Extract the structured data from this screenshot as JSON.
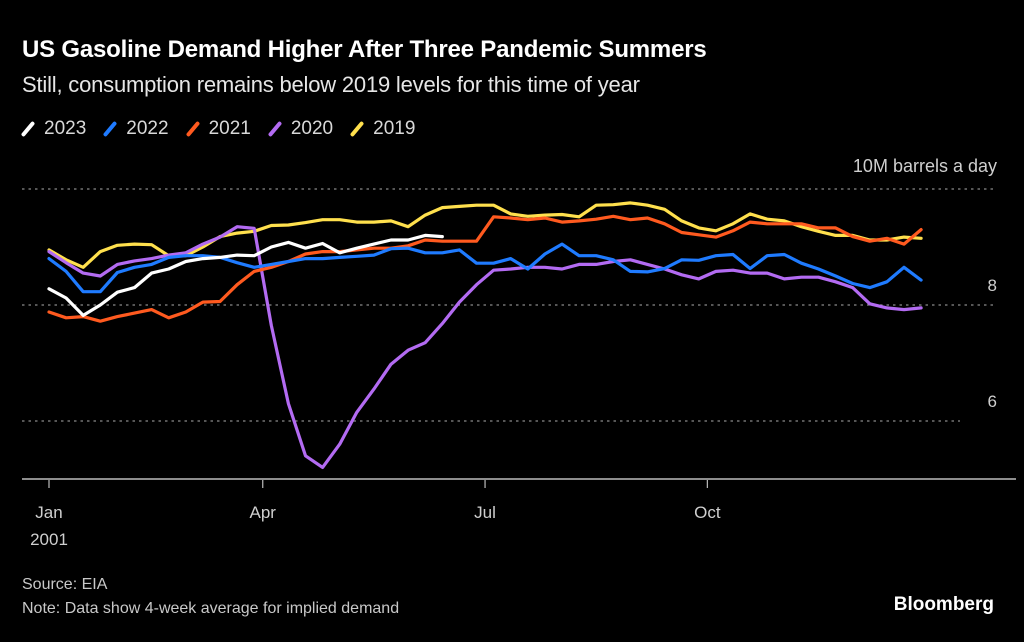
{
  "chart_data": {
    "type": "line",
    "title": "US Gasoline Demand Higher After Three Pandemic Summers",
    "subtitle": "Still, consumption remains below 2019 levels for this time of year",
    "ylabel": "10M barrels a day",
    "unit_label": "10M barrels a day",
    "ylim": [
      4.9,
      10
    ],
    "yticks": [
      {
        "value": 10,
        "label": ""
      },
      {
        "value": 8,
        "label": "8"
      },
      {
        "value": 6,
        "label": "6"
      }
    ],
    "x_weeks": 52,
    "xticks": [
      {
        "week": 0,
        "label": "Jan",
        "sublabel": "2001"
      },
      {
        "week": 12.5,
        "label": "Apr",
        "sublabel": ""
      },
      {
        "week": 25.5,
        "label": "Jul",
        "sublabel": ""
      },
      {
        "week": 38.5,
        "label": "Oct",
        "sublabel": ""
      }
    ],
    "grid": true,
    "legend_position": "top-left",
    "series": [
      {
        "name": "2023",
        "color": "#ffffff",
        "values": [
          8.28,
          8.12,
          7.82,
          8.0,
          8.22,
          8.3,
          8.55,
          8.62,
          8.75,
          8.8,
          8.82,
          8.86,
          8.85,
          9.0,
          9.08,
          8.98,
          9.06,
          8.9,
          8.98,
          9.05,
          9.12,
          9.12,
          9.2,
          9.18
        ]
      },
      {
        "name": "2022",
        "color": "#1f7bff",
        "values": [
          8.8,
          8.58,
          8.23,
          8.23,
          8.56,
          8.65,
          8.7,
          8.82,
          8.85,
          8.85,
          8.82,
          8.73,
          8.65,
          8.7,
          8.75,
          8.8,
          8.8,
          8.82,
          8.84,
          8.86,
          8.97,
          8.98,
          8.9,
          8.9,
          8.95,
          8.72,
          8.72,
          8.8,
          8.62,
          8.88,
          9.05,
          8.85,
          8.85,
          8.78,
          8.58,
          8.57,
          8.63,
          8.78,
          8.77,
          8.85,
          8.87,
          8.63,
          8.85,
          8.87,
          8.72,
          8.62,
          8.5,
          8.37,
          8.3,
          8.4,
          8.65,
          8.43
        ]
      },
      {
        "name": "2021",
        "color": "#ff5a1f",
        "values": [
          7.88,
          7.78,
          7.8,
          7.72,
          7.8,
          7.86,
          7.92,
          7.78,
          7.88,
          8.05,
          8.06,
          8.35,
          8.58,
          8.65,
          8.75,
          8.88,
          8.92,
          8.92,
          8.95,
          8.98,
          8.98,
          9.02,
          9.12,
          9.1,
          9.1,
          9.1,
          9.52,
          9.5,
          9.47,
          9.5,
          9.43,
          9.45,
          9.48,
          9.53,
          9.47,
          9.5,
          9.4,
          9.25,
          9.21,
          9.17,
          9.28,
          9.43,
          9.4,
          9.4,
          9.4,
          9.33,
          9.33,
          9.18,
          9.1,
          9.15,
          9.05,
          9.3
        ]
      },
      {
        "name": "2020",
        "color": "#b36bf2",
        "values": [
          8.92,
          8.73,
          8.55,
          8.5,
          8.7,
          8.76,
          8.8,
          8.86,
          8.9,
          9.05,
          9.17,
          9.35,
          9.32,
          7.65,
          6.3,
          5.4,
          5.2,
          5.6,
          6.15,
          6.55,
          6.98,
          7.22,
          7.35,
          7.68,
          8.05,
          8.35,
          8.6,
          8.62,
          8.65,
          8.65,
          8.62,
          8.7,
          8.7,
          8.75,
          8.78,
          8.7,
          8.62,
          8.52,
          8.45,
          8.58,
          8.6,
          8.55,
          8.55,
          8.45,
          8.48,
          8.48,
          8.4,
          8.3,
          8.02,
          7.95,
          7.92,
          7.95
        ]
      },
      {
        "name": "2019",
        "color": "#ffe04d",
        "values": [
          8.95,
          8.78,
          8.65,
          8.92,
          9.03,
          9.05,
          9.04,
          8.85,
          8.85,
          9.0,
          9.18,
          9.24,
          9.27,
          9.37,
          9.38,
          9.42,
          9.47,
          9.47,
          9.43,
          9.43,
          9.45,
          9.35,
          9.55,
          9.68,
          9.7,
          9.72,
          9.72,
          9.57,
          9.53,
          9.55,
          9.56,
          9.52,
          9.72,
          9.73,
          9.76,
          9.72,
          9.65,
          9.45,
          9.33,
          9.28,
          9.4,
          9.57,
          9.48,
          9.45,
          9.35,
          9.27,
          9.2,
          9.2,
          9.12,
          9.12,
          9.17,
          9.15
        ]
      }
    ]
  },
  "footer": {
    "source": "Source: EIA",
    "note": "Note: Data show 4-week average for implied demand",
    "brand": "Bloomberg"
  }
}
